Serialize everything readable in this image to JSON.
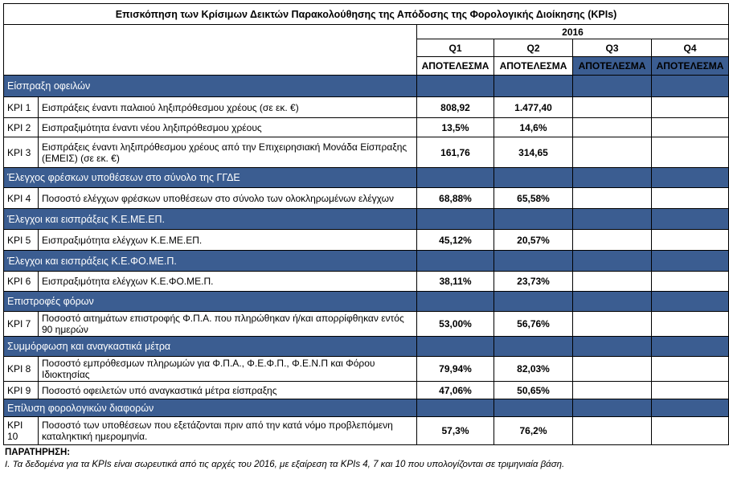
{
  "title": "Επισκόπηση των Κρίσιμων Δεικτών Παρακολούθησης της Απόδοσης της Φορολογικής Διοίκησης (KPIs)",
  "year": "2016",
  "quarters": [
    "Q1",
    "Q2",
    "Q3",
    "Q4"
  ],
  "result_labels": [
    "ΑΠΟΤΕΛΕΣΜΑ",
    "ΑΠΟΤΕΛΕΣΜΑ",
    "ΑΠΟΤΕΛΕΣΜΑ",
    "ΑΠΟΤΕΛΕΣΜΑ"
  ],
  "sections": [
    {
      "title": "Είσπραξη οφειλών",
      "rows": [
        {
          "kpi": "KPI 1",
          "description": "Εισπράξεις έναντι παλαιού ληξιπρόθεσμου χρέους (σε εκ. €)",
          "q1": "808,92",
          "q2": "1.477,40"
        },
        {
          "kpi": "KPI 2",
          "description": "Εισπραξιμότητα έναντι νέου ληξιπρόθεσμου χρέους",
          "q1": "13,5%",
          "q2": "14,6%"
        },
        {
          "kpi": "KPI 3",
          "description": "Εισπράξεις έναντι ληξιπρόθεσμου χρέους από την Επιχειρησιακή Μονάδα Είσπραξης (ΕΜΕΙΣ) (σε εκ. €)",
          "q1": "161,76",
          "q2": "314,65"
        }
      ]
    },
    {
      "title": "Έλεγχος φρέσκων υποθέσεων στο σύνολο της ΓΓΔΕ",
      "rows": [
        {
          "kpi": "KPI 4",
          "description": "Ποσοστό ελέγχων φρέσκων υποθέσεων στο σύνολο των ολοκληρωμένων ελέγχων",
          "q1": "68,88%",
          "q2": "65,58%"
        }
      ]
    },
    {
      "title": "Έλεγχοι και εισπράξεις Κ.Ε.ΜΕ.ΕΠ.",
      "rows": [
        {
          "kpi": "KPI 5",
          "description": "Εισπραξιμότητα ελέγχων Κ.Ε.ΜΕ.ΕΠ.",
          "q1": "45,12%",
          "q2": "20,57%"
        }
      ]
    },
    {
      "title": "Έλεγχοι και εισπράξεις Κ.Ε.ΦΟ.ΜΕ.Π.",
      "rows": [
        {
          "kpi": "KPI 6",
          "description": "Εισπραξιμότητα ελέγχων Κ.Ε.ΦΟ.ΜΕ.Π.",
          "q1": "38,11%",
          "q2": "23,73%"
        }
      ]
    },
    {
      "title": "Επιστροφές φόρων",
      "rows": [
        {
          "kpi": "KPI 7",
          "description": "Ποσοστό αιτημάτων επιστροφής Φ.Π.Α. που πληρώθηκαν ή/και απορρίφθηκαν εντός 90 ημερών",
          "q1": "53,00%",
          "q2": "56,76%"
        }
      ]
    },
    {
      "title": "Συμμόρφωση και αναγκαστικά μέτρα",
      "rows": [
        {
          "kpi": "KPI 8",
          "description": "Ποσοστό εμπρόθεσμων πληρωμών για Φ.Π.Α., Φ.Ε.Φ.Π., Φ.Ε.Ν.Π και Φόρου Ιδιοκτησίας",
          "q1": "79,94%",
          "q2": "82,03%"
        },
        {
          "kpi": "KPI 9",
          "description": "Ποσοστό οφειλετών υπό αναγκαστικά μέτρα είσπραξης",
          "q1": "47,06%",
          "q2": "50,65%"
        }
      ]
    },
    {
      "title": "Επίλυση φορολογικών διαφορών",
      "rows": [
        {
          "kpi": "KPI 10",
          "description": "Ποσοστό των υποθέσεων που εξετάζονται πριν από την κατά νόμο προβλεπόμενη καταληκτική ημερομηνία.",
          "q1": "57,3%",
          "q2": "76,2%"
        }
      ]
    }
  ],
  "note": {
    "heading": "ΠΑΡΑΤΗΡΗΣΗ:",
    "text": "Ι. Τα δεδομένα για τα KPIs είναι σωρευτικά από τις αρχές του 2016, με εξαίρεση τα KPIs 4, 7 και 10 που υπολογίζονται σε τριμηνιαία βάση."
  }
}
